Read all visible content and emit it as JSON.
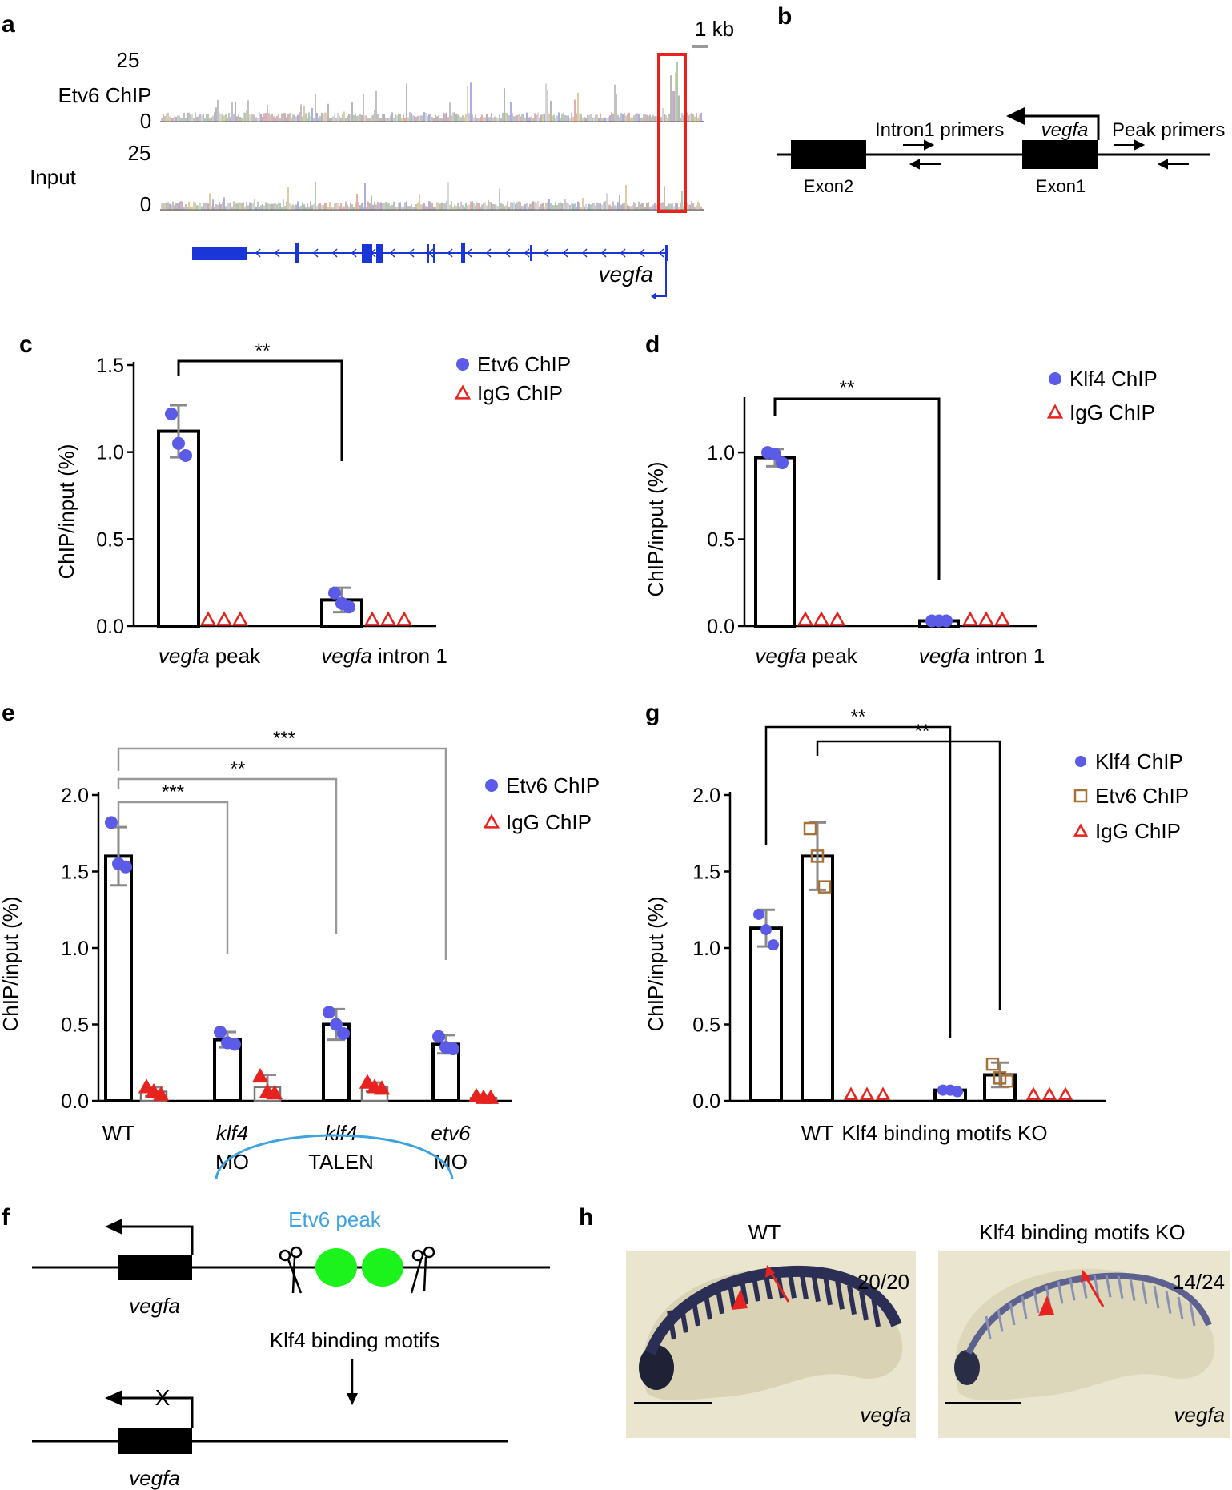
{
  "panels": {
    "a": {
      "label": "a",
      "scale_bar": "1 kb",
      "tracks": [
        {
          "name": "Etv6 ChIP",
          "ymax": "25",
          "ymin": "0"
        },
        {
          "name": "Input",
          "ymax": "25",
          "ymin": "0"
        }
      ],
      "gene": "vegfa"
    },
    "b": {
      "label": "b",
      "gene": "vegfa",
      "intron_primers": "Intron1 primers",
      "peak_primers": "Peak primers",
      "exon2": "Exon2",
      "exon1": "Exon1"
    },
    "f": {
      "label": "f",
      "peak": "Etv6 peak",
      "gene": "vegfa",
      "motifs": "Klf4 binding motifs",
      "cross": "X"
    },
    "h": {
      "label": "h",
      "wt_title": "WT",
      "ko_title": "Klf4 binding motifs KO",
      "wt_count": "20/20",
      "ko_count": "14/24",
      "gene": "vegfa"
    }
  },
  "chart_data": [
    {
      "id": "c",
      "label": "c",
      "type": "bar",
      "ylabel": "ChIP/input (%)",
      "ylim": [
        0,
        1.5
      ],
      "yticks": [
        "0.0",
        "0.5",
        "1.0",
        "1.5"
      ],
      "categories": [
        {
          "it": "vegfa",
          "rest": " peak"
        },
        {
          "it": "vegfa",
          "rest": " intron 1"
        }
      ],
      "series": [
        {
          "name": "Etv6 ChIP",
          "marker": "circle",
          "color": "#5b5be8",
          "values": [
            1.12,
            0.15
          ],
          "err": [
            0.15,
            0.07
          ],
          "points": [
            [
              1.22,
              1.05,
              0.98
            ],
            [
              0.19,
              0.13,
              0.11
            ]
          ]
        },
        {
          "name": "IgG ChIP",
          "marker": "triangle-open",
          "color": "#e8221f",
          "values": [
            0.0,
            0.0
          ],
          "err": [
            0,
            0
          ],
          "points": [
            [
              0,
              0,
              0
            ],
            [
              0,
              0,
              0
            ]
          ]
        }
      ],
      "significance": [
        {
          "text": "**"
        }
      ]
    },
    {
      "id": "d",
      "label": "d",
      "type": "bar",
      "ylabel": "ChIP/input (%)",
      "ylim": [
        0,
        1.3
      ],
      "yticks": [
        "0.0",
        "0.5",
        "1.0"
      ],
      "categories": [
        {
          "it": "vegfa",
          "rest": " peak"
        },
        {
          "it": "vegfa",
          "rest": " intron 1"
        }
      ],
      "series": [
        {
          "name": "Klf4 ChIP",
          "marker": "circle",
          "color": "#5b5be8",
          "values": [
            0.97,
            0.03
          ],
          "err": [
            0.05,
            0.01
          ],
          "points": [
            [
              1.0,
              0.99,
              0.94
            ],
            [
              0.03,
              0.03,
              0.03
            ]
          ]
        },
        {
          "name": "IgG ChIP",
          "marker": "triangle-open",
          "color": "#e8221f",
          "values": [
            0.0,
            0.0
          ],
          "err": [
            0,
            0
          ],
          "points": [
            [
              0,
              0,
              0
            ],
            [
              0,
              0,
              0
            ]
          ]
        }
      ],
      "significance": [
        {
          "text": "**"
        }
      ]
    },
    {
      "id": "e",
      "label": "e",
      "type": "bar",
      "ylabel": "ChIP/input (%)",
      "ylim": [
        0,
        2.0
      ],
      "yticks": [
        "0.0",
        "0.5",
        "1.0",
        "1.5",
        "2.0"
      ],
      "categories": [
        {
          "l1": "WT",
          "l2": "",
          "it": false
        },
        {
          "l1": "klf4",
          "l2": "MO",
          "it": true
        },
        {
          "l1": "klf4",
          "l2": "TALEN",
          "it": true
        },
        {
          "l1": "etv6",
          "l2": "MO",
          "it": true
        }
      ],
      "series": [
        {
          "name": "Etv6 ChIP",
          "marker": "circle",
          "color": "#5b5be8",
          "values": [
            1.6,
            0.4,
            0.5,
            0.37
          ],
          "err": [
            0.19,
            0.05,
            0.1,
            0.06
          ],
          "points": [
            [
              1.82,
              1.55,
              1.53
            ],
            [
              0.45,
              0.38,
              0.37
            ],
            [
              0.58,
              0.5,
              0.44
            ],
            [
              0.42,
              0.35,
              0.34
            ]
          ]
        },
        {
          "name": "IgG ChIP",
          "marker": "triangle-filled",
          "color": "#e8221f",
          "values": [
            0.06,
            0.09,
            0.09,
            0.02
          ],
          "err": [
            0.03,
            0.08,
            0.03,
            0.01
          ],
          "points": [
            [
              0.09,
              0.06,
              0.04
            ],
            [
              0.16,
              0.06,
              0.05
            ],
            [
              0.12,
              0.09,
              0.08
            ],
            [
              0.03,
              0.02,
              0.02
            ]
          ]
        }
      ],
      "significance": [
        {
          "text": "***"
        },
        {
          "text": "**"
        },
        {
          "text": "***"
        }
      ]
    },
    {
      "id": "g",
      "label": "g",
      "type": "bar",
      "ylabel": "ChIP/input (%)",
      "ylim": [
        0,
        2.0
      ],
      "yticks": [
        "0.0",
        "0.5",
        "1.0",
        "1.5",
        "2.0"
      ],
      "categories": [
        {
          "l1": "WT"
        },
        {
          "l1": "Klf4 binding motifs KO"
        }
      ],
      "series": [
        {
          "name": "Klf4 ChIP",
          "marker": "circle",
          "color": "#5b5be8",
          "values": [
            1.13,
            0.07
          ],
          "err": [
            0.12,
            0.01
          ],
          "points": [
            [
              1.22,
              1.12,
              1.02
            ],
            [
              0.07,
              0.07,
              0.06
            ]
          ]
        },
        {
          "name": "Etv6 ChIP",
          "marker": "square-open",
          "color": "#a6723a",
          "values": [
            1.6,
            0.17
          ],
          "err": [
            0.22,
            0.08
          ],
          "points": [
            [
              1.78,
              1.6,
              1.4
            ],
            [
              0.24,
              0.15,
              0.13
            ]
          ]
        },
        {
          "name": "IgG ChIP",
          "marker": "triangle-open",
          "color": "#e8221f",
          "values": [
            0.0,
            0.0
          ],
          "err": [
            0,
            0
          ],
          "points": [
            [
              0,
              0,
              0
            ],
            [
              0,
              0,
              0
            ]
          ]
        }
      ],
      "significance": [
        {
          "text": "**"
        },
        {
          "text": "**"
        }
      ]
    }
  ]
}
